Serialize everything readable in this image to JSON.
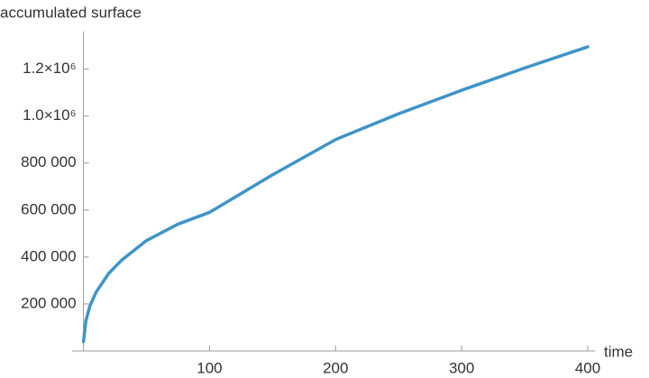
{
  "chart_data": {
    "type": "line",
    "ylabel": "accumulated surface",
    "xlabel": "time",
    "x": [
      0,
      2,
      5,
      10,
      20,
      30,
      50,
      75,
      100,
      150,
      200,
      250,
      300,
      350,
      400
    ],
    "series": [
      {
        "color": "#3e94c8",
        "values": [
          40000,
          130000,
          190000,
          250000,
          330000,
          385000,
          470000,
          540000,
          590000,
          750000,
          900000,
          1010000,
          1110000,
          1205000,
          1295000
        ]
      }
    ],
    "xlim": [
      -9,
      400
    ],
    "ylim": [
      0,
      1360000
    ],
    "xticks": [
      100,
      200,
      300,
      400
    ],
    "yticks": [
      {
        "value": 200000,
        "label": "200 000"
      },
      {
        "value": 400000,
        "label": "400 000"
      },
      {
        "value": 600000,
        "label": "600 000"
      },
      {
        "value": 800000,
        "label": "800 000"
      },
      {
        "value": 1000000,
        "label": "1.0×10⁶"
      },
      {
        "value": 1200000,
        "label": "1.2×10⁶"
      }
    ]
  }
}
